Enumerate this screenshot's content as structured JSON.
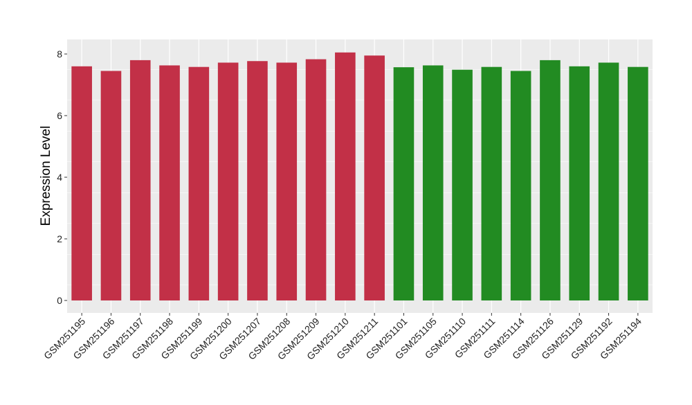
{
  "chart_data": {
    "type": "bar",
    "title": "",
    "xlabel": "",
    "ylabel": "Expression Level",
    "ylim": [
      0,
      8.5
    ],
    "yticks": [
      0,
      2,
      4,
      6,
      8
    ],
    "grid": true,
    "legend": "none",
    "colors": {
      "group1": "#C23047",
      "group2": "#228B22",
      "panel_bg": "#EBEBEB",
      "grid": "#FFFFFF"
    },
    "categories": [
      "GSM251195",
      "GSM251196",
      "GSM251197",
      "GSM251198",
      "GSM251199",
      "GSM251200",
      "GSM251207",
      "GSM251208",
      "GSM251209",
      "GSM251210",
      "GSM251211",
      "GSM251101",
      "GSM251105",
      "GSM251110",
      "GSM251111",
      "GSM251114",
      "GSM251126",
      "GSM251129",
      "GSM251192",
      "GSM251194"
    ],
    "values": [
      7.6,
      7.45,
      7.8,
      7.63,
      7.58,
      7.72,
      7.77,
      7.72,
      7.83,
      8.05,
      7.95,
      7.57,
      7.63,
      7.49,
      7.58,
      7.45,
      7.8,
      7.6,
      7.72,
      7.58
    ],
    "groups": [
      "group1",
      "group1",
      "group1",
      "group1",
      "group1",
      "group1",
      "group1",
      "group1",
      "group1",
      "group1",
      "group1",
      "group2",
      "group2",
      "group2",
      "group2",
      "group2",
      "group2",
      "group2",
      "group2",
      "group2"
    ]
  }
}
